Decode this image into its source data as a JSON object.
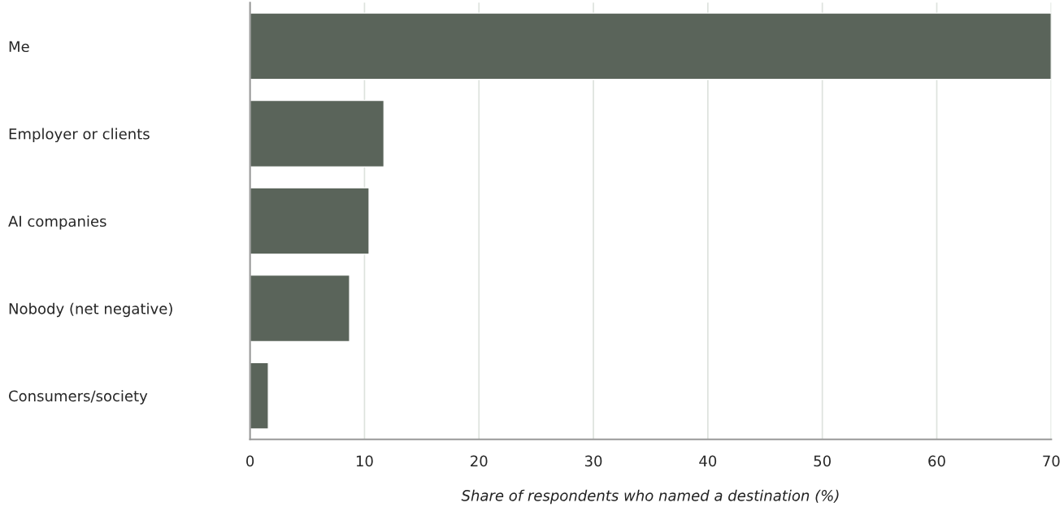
{
  "chart_data": {
    "type": "bar",
    "orientation": "horizontal",
    "categories": [
      "Me",
      "Employer or clients",
      "AI companies",
      "Nobody (net negative)",
      "Consumers/society"
    ],
    "values": [
      70,
      11.7,
      10.4,
      8.7,
      1.6
    ],
    "color": "#5a645a",
    "xlim": [
      0,
      70
    ],
    "xticks": [
      0,
      10,
      20,
      30,
      40,
      50,
      60,
      70
    ],
    "xlabel": "Share of respondents who named a destination (%)",
    "grid": "x"
  }
}
